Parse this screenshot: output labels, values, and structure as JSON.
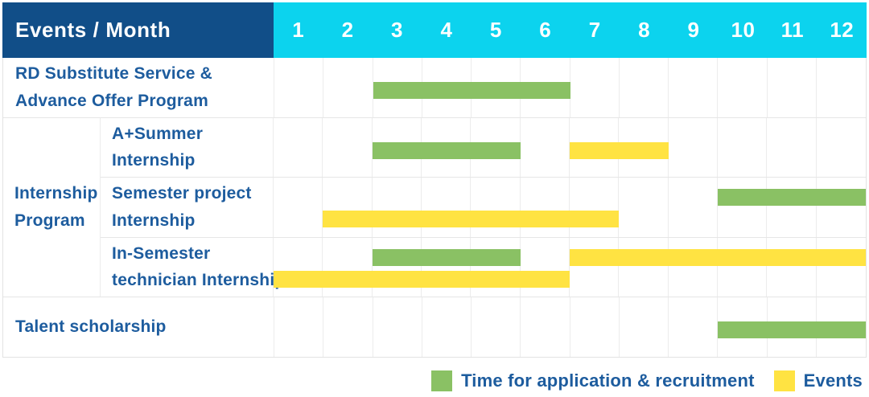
{
  "colors": {
    "navy": "#114e88",
    "cyan": "#0cd3ee",
    "green": "#8ac164",
    "yellow": "#ffe342",
    "text_blue": "#1d5c9e"
  },
  "table": {
    "header": {
      "title": "Events / Month",
      "months": [
        "1",
        "2",
        "3",
        "4",
        "5",
        "6",
        "7",
        "8",
        "9",
        "10",
        "11",
        "12"
      ]
    },
    "group_label": "Internship\nProgram",
    "rows": [
      {
        "label": "RD Substitute Service &\nAdvance Offer Program",
        "group": null,
        "bands": [
          [
            {
              "color": "green",
              "start": 3,
              "end": 6
            }
          ]
        ]
      },
      {
        "label": "A+Summer\nInternship",
        "group": "Internship Program",
        "bands": [
          [
            {
              "color": "green",
              "start": 3,
              "end": 5
            },
            {
              "color": "yellow",
              "start": 7,
              "end": 8
            }
          ]
        ]
      },
      {
        "label": "Semester project\nInternship",
        "group": "Internship Program",
        "bands": [
          [
            {
              "color": "green",
              "start": 10,
              "end": 12
            }
          ],
          [
            {
              "color": "yellow",
              "start": 2,
              "end": 7
            }
          ]
        ]
      },
      {
        "label": "In-Semester\ntechnician Internship",
        "group": "Internship Program",
        "bands": [
          [
            {
              "color": "green",
              "start": 3,
              "end": 5
            },
            {
              "color": "yellow",
              "start": 7,
              "end": 12
            }
          ],
          [
            {
              "color": "yellow",
              "start": 1,
              "end": 6
            }
          ]
        ]
      },
      {
        "label": "Talent scholarship",
        "group": null,
        "bands": [
          [
            {
              "color": "green",
              "start": 10,
              "end": 12
            }
          ]
        ]
      }
    ]
  },
  "legend": [
    {
      "color": "green",
      "label": "Time for application & recruitment"
    },
    {
      "color": "yellow",
      "label": "Events"
    }
  ],
  "chart_data": {
    "type": "table",
    "subtype": "gantt",
    "title": "Events / Month",
    "xlabel": "Month",
    "x_ticks": [
      1,
      2,
      3,
      4,
      5,
      6,
      7,
      8,
      9,
      10,
      11,
      12
    ],
    "x_range": [
      1,
      12
    ],
    "grid": true,
    "legend_position": "bottom-right",
    "series_types": {
      "green": "Time for application & recruitment",
      "yellow": "Events"
    },
    "rows": [
      {
        "event": "RD Substitute Service & Advance Offer Program",
        "group": null,
        "bars": [
          {
            "type": "Time for application & recruitment",
            "start_month": 3,
            "end_month": 6
          }
        ]
      },
      {
        "event": "A+Summer Internship",
        "group": "Internship Program",
        "bars": [
          {
            "type": "Time for application & recruitment",
            "start_month": 3,
            "end_month": 5
          },
          {
            "type": "Events",
            "start_month": 7,
            "end_month": 8
          }
        ]
      },
      {
        "event": "Semester project Internship",
        "group": "Internship Program",
        "bars": [
          {
            "type": "Time for application & recruitment",
            "start_month": 10,
            "end_month": 12
          },
          {
            "type": "Events",
            "start_month": 2,
            "end_month": 7
          }
        ]
      },
      {
        "event": "In-Semester technician Internship",
        "group": "Internship Program",
        "bars": [
          {
            "type": "Time for application & recruitment",
            "start_month": 3,
            "end_month": 5
          },
          {
            "type": "Events",
            "start_month": 7,
            "end_month": 12
          },
          {
            "type": "Events",
            "start_month": 1,
            "end_month": 6
          }
        ]
      },
      {
        "event": "Talent scholarship",
        "group": null,
        "bars": [
          {
            "type": "Time for application & recruitment",
            "start_month": 10,
            "end_month": 12
          }
        ]
      }
    ]
  }
}
